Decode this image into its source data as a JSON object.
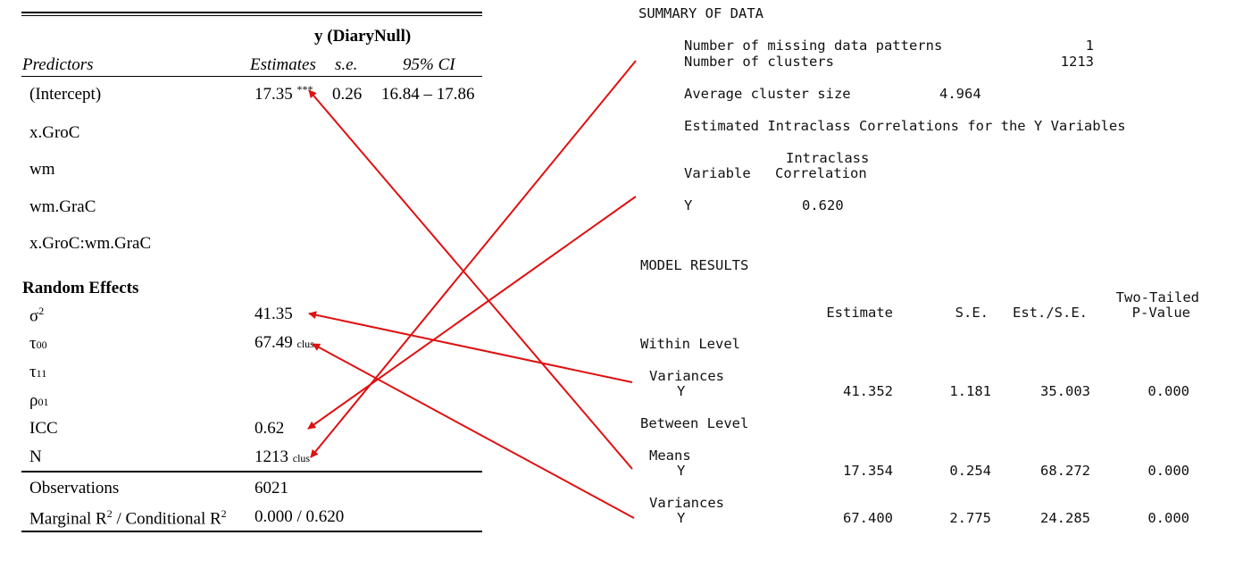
{
  "regression_table": {
    "dv_header": "y (DiaryNull)",
    "columns": {
      "predictors": "Predictors",
      "estimates": "Estimates",
      "se": "s.e.",
      "ci": "95% CI"
    },
    "intercept": {
      "label": "(Intercept)",
      "estimate": "17.35",
      "stars": "***",
      "se": "0.26",
      "ci": "16.84 – 17.86"
    },
    "predictors": [
      "x.GroC",
      "wm",
      "wm.GraC",
      "x.GroC:wm.GraC"
    ],
    "random_effects": {
      "header": "Random Effects",
      "sigma2": {
        "label": "σ",
        "sup": "2",
        "value": "41.35"
      },
      "tau00": {
        "label": "τ",
        "sub": "00",
        "value": "67.49",
        "value_sub": "clus"
      },
      "tau11": {
        "label": "τ",
        "sub": "11"
      },
      "rho01": {
        "label": "ρ",
        "sub": "01"
      },
      "icc": {
        "label": "ICC",
        "value": "0.62"
      },
      "n": {
        "label": "N",
        "value": "1213",
        "value_sub": "clus"
      }
    },
    "observations": {
      "label": "Observations",
      "value": "6021"
    },
    "r2": {
      "label_a": "Marginal R",
      "sup_a": "2",
      "label_b": " / Conditional R",
      "sup_b": "2",
      "value": "0.000 / 0.620"
    }
  },
  "mplus": {
    "summary_header": "SUMMARY OF DATA",
    "missing_patterns": {
      "label": "Number of missing data patterns",
      "value": "1"
    },
    "clusters": {
      "label": "Number of clusters",
      "value": "1213"
    },
    "avg_cluster_size": {
      "label": "Average cluster size",
      "value": "4.964"
    },
    "icc_header": "Estimated Intraclass Correlations for the Y Variables",
    "icc_col_variable": "Variable",
    "icc_col_a": "Intraclass",
    "icc_col_b": "Correlation",
    "icc_row": {
      "variable": "Y",
      "value": "0.620"
    },
    "model_header": "MODEL RESULTS",
    "cols": {
      "estimate": "Estimate",
      "se": "S.E.",
      "est_se": "Est./S.E.",
      "pval_a": "Two-Tailed",
      "pval_b": "P-Value"
    },
    "within_level": "Within Level",
    "between_level": "Between Level",
    "within_variances": {
      "label": "Variances",
      "var": "Y",
      "estimate": "41.352",
      "se": "1.181",
      "est_se": "35.003",
      "p": "0.000"
    },
    "between_means": {
      "label": "Means",
      "var": "Y",
      "estimate": "17.354",
      "se": "0.254",
      "est_se": "68.272",
      "p": "0.000"
    },
    "between_variances": {
      "label": "Variances",
      "var": "Y",
      "estimate": "67.400",
      "se": "2.775",
      "est_se": "24.285",
      "p": "0.000"
    }
  },
  "arrow_color": "#e01010"
}
